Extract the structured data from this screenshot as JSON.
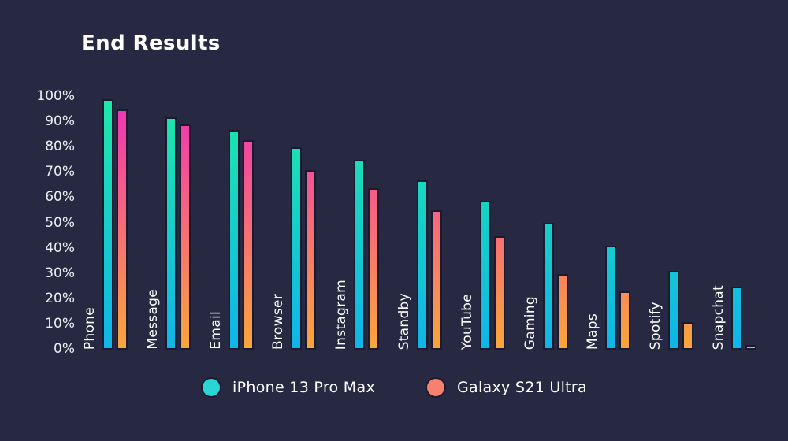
{
  "title": "End Results",
  "colors": {
    "background": "#272942",
    "bar_outline": "#1a1b30",
    "text": "#ffffff",
    "tick_text": "#eceef4"
  },
  "chart_data": {
    "type": "bar",
    "title": "End Results",
    "categories": [
      "Phone",
      "Message",
      "Email",
      "Browser",
      "Instagram",
      "Standby",
      "YouTube",
      "Gaming",
      "Maps",
      "Spotify",
      "Snapchat"
    ],
    "series": [
      {
        "name": "iPhone 13 Pro Max",
        "values": [
          99,
          92,
          87,
          80,
          75,
          67,
          59,
          50,
          41,
          31,
          25
        ],
        "gradient_top": "#1fe9a7",
        "gradient_bottom": "#0fb5e9",
        "legend_dot_color": "#2ad5d5"
      },
      {
        "name": "Galaxy S21 Ultra",
        "values": [
          95,
          89,
          83,
          71,
          64,
          55,
          45,
          30,
          23,
          11,
          2
        ],
        "gradient_top": "#f12fb8",
        "gradient_bottom": "#f9a63b",
        "legend_dot_color": "#f97f6e"
      }
    ],
    "xlabel": "",
    "ylabel": "",
    "ylim": [
      0,
      100
    ],
    "yticks": [
      "0%",
      "10%",
      "20%",
      "30%",
      "40%",
      "50%",
      "60%",
      "70%",
      "80%",
      "90%",
      "100%"
    ],
    "grid": false,
    "legend_position": "bottom",
    "bar_gradient_scope": "full-chart-height"
  }
}
